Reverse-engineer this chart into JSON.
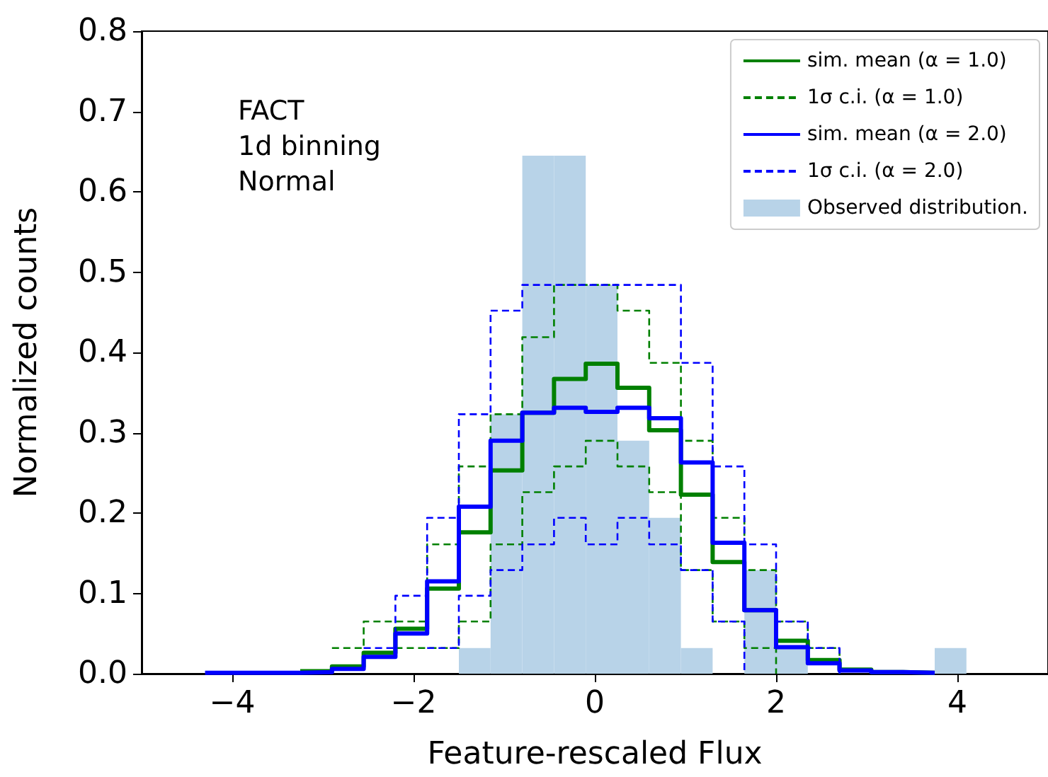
{
  "chart_data": {
    "type": "histogram",
    "xlabel": "Feature-rescaled Flux",
    "ylabel": "Normalized counts",
    "annotations": [
      "FACT\n1d binning\nNormal"
    ],
    "bins": [
      -4.3,
      -3.95,
      -3.6,
      -3.25,
      -2.9,
      -2.55,
      -2.2,
      -1.85,
      -1.5,
      -1.15,
      -0.8,
      -0.45,
      -0.1,
      0.25,
      0.6,
      0.95,
      1.3,
      1.65,
      2.0,
      2.35,
      2.7,
      3.05,
      3.4,
      3.75,
      4.1
    ],
    "x": [
      -4.3,
      -3.95,
      -3.6,
      -3.25,
      -2.9,
      -2.55,
      -2.2,
      -1.85,
      -1.5,
      -1.15,
      -0.8,
      -0.45,
      -0.1,
      0.25,
      0.6,
      0.95,
      1.3,
      1.65,
      2.0,
      2.35,
      2.7,
      3.05,
      3.4,
      3.75
    ],
    "series": [
      {
        "name": "sim. mean (α = 1.0)",
        "type": "step",
        "color": "#008000",
        "line_style": "solid",
        "values": [
          null,
          null,
          null,
          0.003,
          0.009,
          0.026,
          0.056,
          0.106,
          0.176,
          0.253,
          0.325,
          0.367,
          0.386,
          0.356,
          0.303,
          0.223,
          0.139,
          0.079,
          0.041,
          0.017,
          0.005,
          0.002,
          0.001,
          0
        ]
      },
      {
        "name": "1σ c.i. (α = 1.0)",
        "type": "step",
        "color": "#008000",
        "line_style": "dashed",
        "values": [
          null,
          null,
          null,
          null,
          0.032,
          0.065,
          0.065,
          0.161,
          0.258,
          0.323,
          0.419,
          0.484,
          0.484,
          0.452,
          0.387,
          0.29,
          0.194,
          0.129,
          0.065,
          0.032,
          0,
          null,
          null,
          null
        ]
      },
      {
        "type": "step",
        "color": "#008000",
        "line_style": "dashed",
        "values": [
          null,
          null,
          null,
          null,
          null,
          null,
          0.032,
          0.032,
          0.065,
          0.161,
          0.226,
          0.258,
          0.29,
          0.258,
          0.226,
          0.129,
          0.065,
          0.032,
          0,
          null,
          null,
          null,
          null,
          null
        ]
      },
      {
        "name": "sim. mean (α = 2.0)",
        "type": "step",
        "color": "#0000ff",
        "line_style": "solid",
        "values": [
          0.001,
          0.001,
          0.001,
          0.002,
          0.006,
          0.021,
          0.05,
          0.115,
          0.208,
          0.29,
          0.325,
          0.331,
          0.326,
          0.331,
          0.318,
          0.263,
          0.163,
          0.079,
          0.033,
          0.013,
          0.004,
          0.002,
          0.001,
          0
        ]
      },
      {
        "name": "1σ c.i. (α = 2.0)",
        "type": "step",
        "color": "#0000ff",
        "line_style": "dashed",
        "values": [
          null,
          null,
          null,
          null,
          null,
          0.032,
          0.097,
          0.194,
          0.323,
          0.452,
          0.484,
          0.484,
          0.484,
          0.484,
          0.484,
          0.387,
          0.258,
          0.161,
          0.065,
          0.032,
          0,
          null,
          null,
          null
        ]
      },
      {
        "type": "step",
        "color": "#0000ff",
        "line_style": "dashed",
        "values": [
          null,
          null,
          null,
          null,
          null,
          null,
          null,
          0.032,
          0.097,
          0.129,
          0.161,
          0.194,
          0.161,
          0.194,
          0.161,
          0.129,
          0.065,
          0,
          null,
          null,
          null,
          null,
          null,
          null
        ]
      },
      {
        "name": "Observed distribution.",
        "color": "#b8d3e8",
        "values": [
          0,
          0,
          0,
          0,
          0,
          0,
          0,
          0,
          0.032,
          0.323,
          0.645,
          0.645,
          0.484,
          0.29,
          0.194,
          0.032,
          0,
          0.129,
          0.032,
          0,
          0,
          0,
          0,
          0.032
        ]
      }
    ],
    "xlim": [
      -5,
      5
    ],
    "ylim": [
      0,
      0.8
    ],
    "xticks": [
      {
        "value": -4,
        "label": "−4"
      },
      {
        "value": -2,
        "label": "−2"
      },
      {
        "value": 0,
        "label": "0"
      },
      {
        "value": 2,
        "label": "2"
      },
      {
        "value": 4,
        "label": "4"
      }
    ],
    "yticks": [
      {
        "value": 0,
        "label": "0.0"
      },
      {
        "value": 0.1,
        "label": "0.1"
      },
      {
        "value": 0.2,
        "label": "0.2"
      },
      {
        "value": 0.3,
        "label": "0.3"
      },
      {
        "value": 0.4,
        "label": "0.4"
      },
      {
        "value": 0.5,
        "label": "0.5"
      },
      {
        "value": 0.6,
        "label": "0.6"
      },
      {
        "value": 0.7,
        "label": "0.7"
      },
      {
        "value": 0.8,
        "label": "0.8"
      }
    ],
    "grid": false,
    "legend": "top right"
  }
}
